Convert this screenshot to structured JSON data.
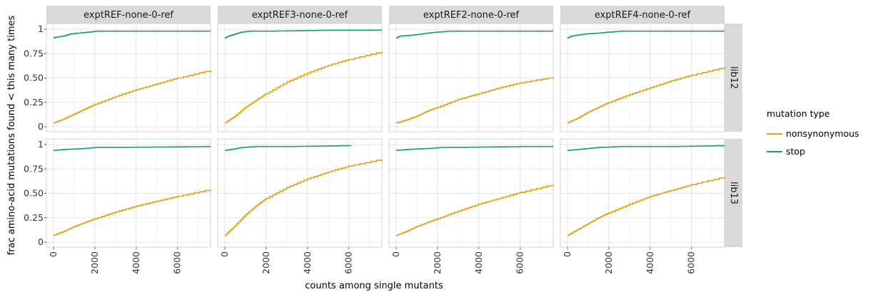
{
  "chart_data": {
    "type": "line",
    "plot_kind": "faceted step ECDF",
    "xlabel": "counts among single mutants",
    "ylabel": "frac amino-acid mutations found < this many times",
    "xlim": [
      0,
      7600
    ],
    "ylim": [
      0,
      1
    ],
    "x_ticks": [
      0,
      2000,
      4000,
      6000
    ],
    "x_tick_labels": [
      "0",
      "2000",
      "4000",
      "6000"
    ],
    "y_ticks": [
      0,
      0.25,
      0.5,
      0.75,
      1
    ],
    "y_tick_labels": [
      "0",
      "0.25",
      "0.50",
      "0.75",
      "1"
    ],
    "grid": true,
    "legend": {
      "title": "mutation type",
      "position": "right",
      "entries": [
        {
          "label": "nonsynonymous",
          "color": "#e0a21a"
        },
        {
          "label": "stop",
          "color": "#1a9e7a"
        }
      ]
    },
    "columns": [
      "exptREF-none-0-ref",
      "exptREF3-none-0-ref",
      "exptREF2-none-0-ref",
      "exptREF4-none-0-ref"
    ],
    "rows": [
      "lib12",
      "lib13"
    ],
    "panels": [
      {
        "row": "lib12",
        "column": "exptREF-none-0-ref",
        "series": [
          {
            "name": "nonsynonymous",
            "x": [
              0,
              500,
              1000,
              1500,
              2000,
              3000,
              4000,
              5000,
              6000,
              7600
            ],
            "values": [
              0.04,
              0.08,
              0.13,
              0.18,
              0.23,
              0.31,
              0.38,
              0.44,
              0.5,
              0.58
            ]
          },
          {
            "name": "stop",
            "x": [
              0,
              200,
              500,
              800,
              1200,
              1700,
              2100,
              7600
            ],
            "values": [
              0.91,
              0.92,
              0.93,
              0.95,
              0.96,
              0.97,
              0.98,
              0.98
            ]
          }
        ]
      },
      {
        "row": "lib12",
        "column": "exptREF3-none-0-ref",
        "series": [
          {
            "name": "nonsynonymous",
            "x": [
              0,
              500,
              1000,
              1500,
              2000,
              3000,
              4000,
              5000,
              6000,
              7600
            ],
            "values": [
              0.04,
              0.11,
              0.2,
              0.27,
              0.34,
              0.46,
              0.55,
              0.63,
              0.69,
              0.77
            ]
          },
          {
            "name": "stop",
            "x": [
              0,
              200,
              500,
              800,
              1200,
              2000,
              5000,
              7600
            ],
            "values": [
              0.91,
              0.93,
              0.95,
              0.97,
              0.98,
              0.98,
              0.99,
              0.99
            ]
          }
        ]
      },
      {
        "row": "lib12",
        "column": "exptREF2-none-0-ref",
        "series": [
          {
            "name": "nonsynonymous",
            "x": [
              0,
              500,
              1000,
              1500,
              2000,
              3000,
              4000,
              5000,
              6000,
              7600
            ],
            "values": [
              0.04,
              0.07,
              0.11,
              0.16,
              0.2,
              0.28,
              0.34,
              0.4,
              0.45,
              0.51
            ]
          },
          {
            "name": "stop",
            "x": [
              0,
              200,
              800,
              1500,
              2000,
              2600,
              7600
            ],
            "values": [
              0.91,
              0.93,
              0.94,
              0.96,
              0.97,
              0.98,
              0.98
            ]
          }
        ]
      },
      {
        "row": "lib12",
        "column": "exptREF4-none-0-ref",
        "series": [
          {
            "name": "nonsynonymous",
            "x": [
              0,
              500,
              1000,
              1500,
              2000,
              3000,
              4000,
              5000,
              6000,
              7600
            ],
            "values": [
              0.04,
              0.09,
              0.15,
              0.2,
              0.25,
              0.33,
              0.4,
              0.47,
              0.53,
              0.61
            ]
          },
          {
            "name": "stop",
            "x": [
              0,
              200,
              800,
              1500,
              2000,
              2600,
              7600
            ],
            "values": [
              0.91,
              0.93,
              0.95,
              0.96,
              0.97,
              0.98,
              0.98
            ]
          }
        ]
      },
      {
        "row": "lib13",
        "column": "exptREF-none-0-ref",
        "series": [
          {
            "name": "nonsynonymous",
            "x": [
              0,
              500,
              1000,
              1500,
              2000,
              3000,
              4000,
              5000,
              6000,
              7600
            ],
            "values": [
              0.07,
              0.11,
              0.16,
              0.2,
              0.24,
              0.31,
              0.37,
              0.42,
              0.47,
              0.54
            ]
          },
          {
            "name": "stop",
            "x": [
              0,
              500,
              1500,
              2000,
              7400,
              7600
            ],
            "values": [
              0.94,
              0.95,
              0.96,
              0.97,
              0.98,
              0.98
            ]
          }
        ]
      },
      {
        "row": "lib13",
        "column": "exptREF3-none-0-ref",
        "series": [
          {
            "name": "nonsynonymous",
            "x": [
              0,
              500,
              1000,
              1500,
              2000,
              3000,
              4000,
              5000,
              6000,
              7600
            ],
            "values": [
              0.07,
              0.17,
              0.28,
              0.37,
              0.45,
              0.56,
              0.65,
              0.72,
              0.78,
              0.85
            ]
          },
          {
            "name": "stop",
            "x": [
              0,
              300,
              800,
              1500,
              3000,
              6100
            ],
            "values": [
              0.94,
              0.95,
              0.97,
              0.98,
              0.98,
              0.99
            ]
          }
        ]
      },
      {
        "row": "lib13",
        "column": "exptREF2-none-0-ref",
        "series": [
          {
            "name": "nonsynonymous",
            "x": [
              0,
              500,
              1000,
              1500,
              2000,
              3000,
              4000,
              5000,
              6000,
              7600
            ],
            "values": [
              0.07,
              0.11,
              0.16,
              0.2,
              0.24,
              0.32,
              0.39,
              0.45,
              0.51,
              0.59
            ]
          },
          {
            "name": "stop",
            "x": [
              0,
              500,
              1500,
              2200,
              6000,
              7600
            ],
            "values": [
              0.94,
              0.95,
              0.96,
              0.97,
              0.98,
              0.98
            ]
          }
        ]
      },
      {
        "row": "lib13",
        "column": "exptREF4-none-0-ref",
        "series": [
          {
            "name": "nonsynonymous",
            "x": [
              0,
              500,
              1000,
              1500,
              2000,
              3000,
              4000,
              5000,
              6000,
              7600
            ],
            "values": [
              0.07,
              0.13,
              0.19,
              0.25,
              0.3,
              0.39,
              0.47,
              0.53,
              0.59,
              0.67
            ]
          },
          {
            "name": "stop",
            "x": [
              0,
              500,
              1000,
              1500,
              2500,
              5000,
              7600
            ],
            "values": [
              0.94,
              0.95,
              0.96,
              0.97,
              0.98,
              0.98,
              0.99
            ]
          }
        ]
      }
    ]
  }
}
